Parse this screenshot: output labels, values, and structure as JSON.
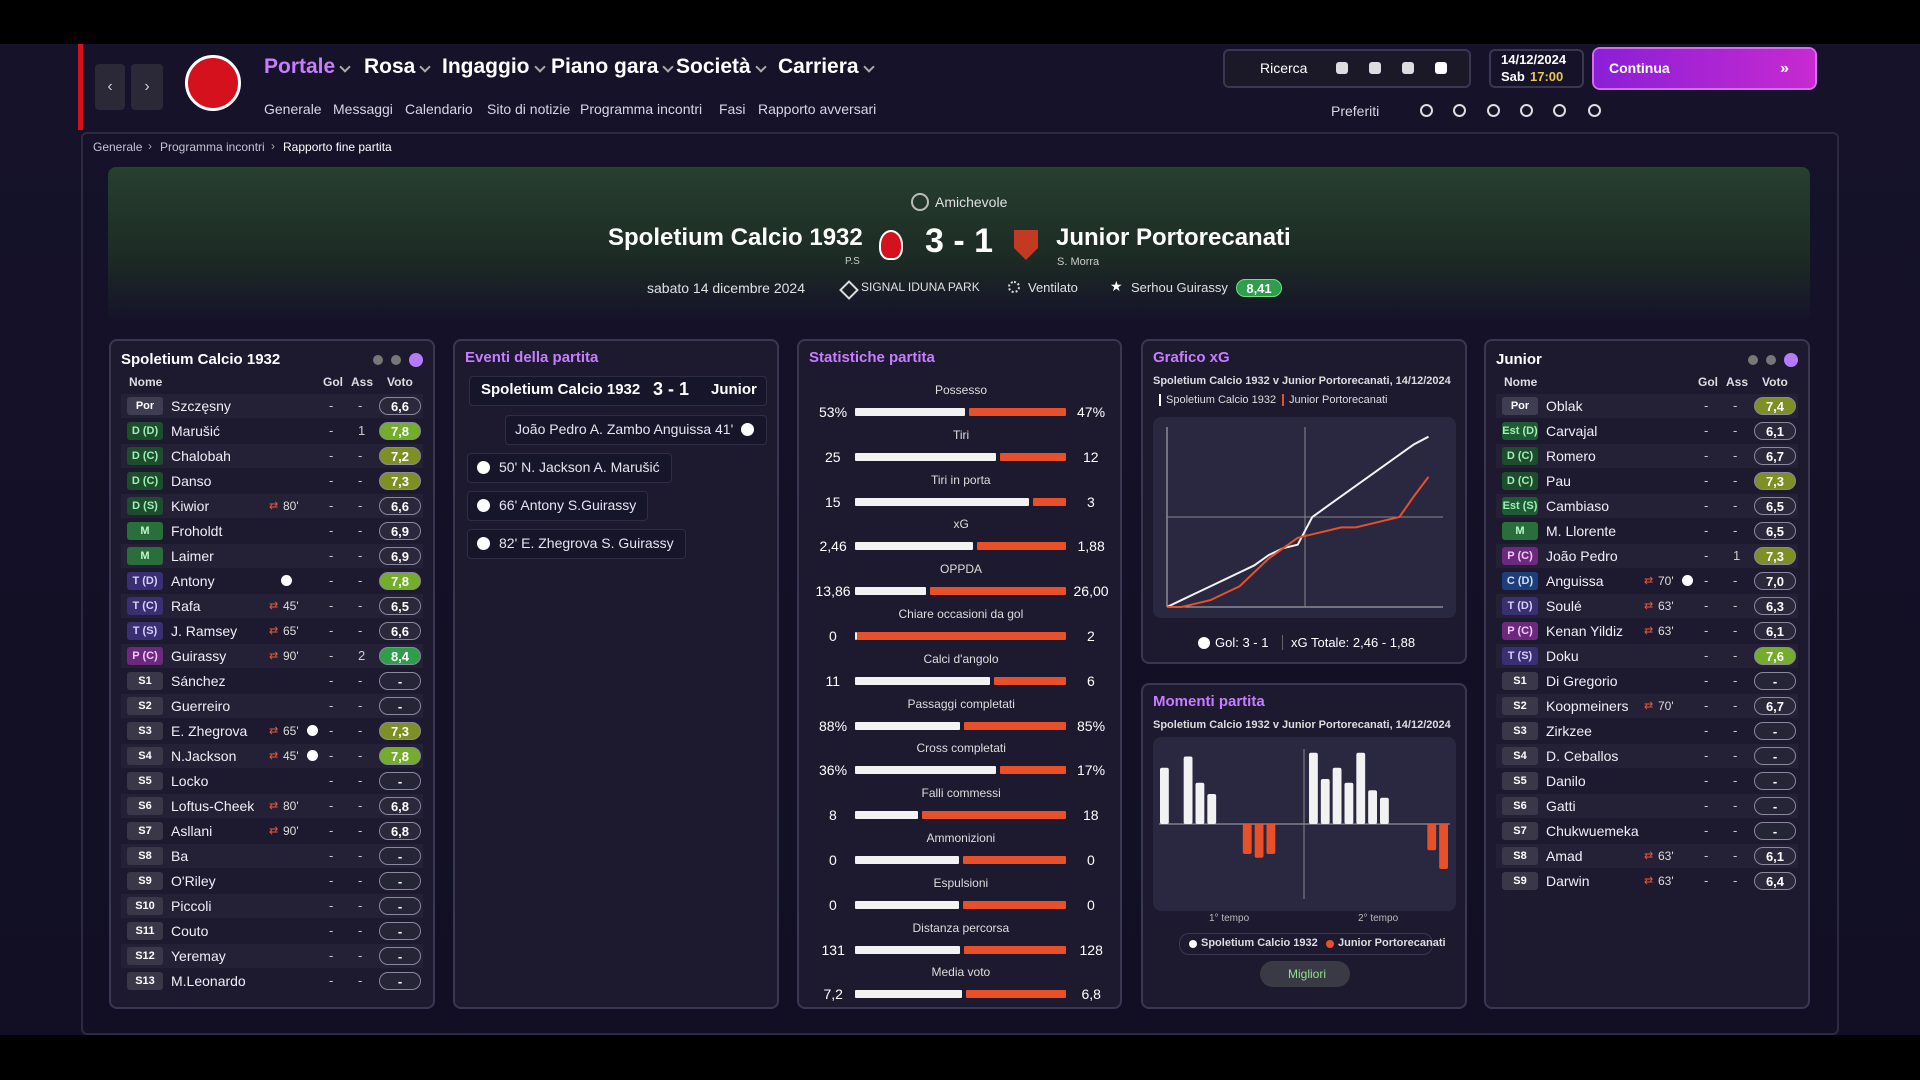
{
  "nav": {
    "menu": [
      "Portale",
      "Rosa",
      "Ingaggio",
      "Piano gara",
      "Società",
      "Carriera"
    ],
    "submenu": [
      "Generale",
      "Messaggi",
      "Calendario",
      "Sito di notizie",
      "Programma incontri",
      "Fasi",
      "Rapporto avversari"
    ],
    "search": "Ricerca",
    "date": "14/12/2024",
    "day": "Sab",
    "time": "17:00",
    "continue": "Continua",
    "favorites": "Preferiti"
  },
  "breadcrumb": [
    "Generale",
    "Programma incontri",
    "Rapporto fine partita"
  ],
  "match": {
    "competition": "Amichevole",
    "home": "Spoletium Calcio 1932",
    "home_note": "P.S",
    "score": "3 - 1",
    "away": "Junior Portorecanati",
    "away_note": "S. Morra",
    "date": "sabato 14 dicembre 2024",
    "stadium": "SIGNAL IDUNA PARK",
    "weather": "Ventilato",
    "motm": "Serhou Guirassy",
    "motm_rating": "8,41"
  },
  "columns": [
    "Nome",
    "Gol",
    "Ass",
    "Voto"
  ],
  "home_lineup": {
    "title": "Spoletium Calcio 1932",
    "players": [
      {
        "pos": "Por",
        "name": "Szczęsny",
        "gol": "-",
        "ass": "-",
        "voto": "6,6"
      },
      {
        "pos": "D (D)",
        "name": "Marušić",
        "gol": "-",
        "ass": "1",
        "voto": "7,8"
      },
      {
        "pos": "D (C)",
        "name": "Chalobah",
        "gol": "-",
        "ass": "-",
        "voto": "7,2"
      },
      {
        "pos": "D (C)",
        "name": "Danso",
        "gol": "-",
        "ass": "-",
        "voto": "7,3"
      },
      {
        "pos": "D (S)",
        "name": "Kiwior",
        "sub": "80'",
        "gol": "-",
        "ass": "-",
        "voto": "6,6"
      },
      {
        "pos": "M",
        "name": "Froholdt",
        "gol": "-",
        "ass": "-",
        "voto": "6,9"
      },
      {
        "pos": "M",
        "name": "Laimer",
        "gol": "-",
        "ass": "-",
        "voto": "6,9"
      },
      {
        "pos": "T (D)",
        "name": "Antony",
        "goal": true,
        "gol": "-",
        "ass": "-",
        "voto": "7,8"
      },
      {
        "pos": "T (C)",
        "name": "Rafa",
        "sub": "45'",
        "gol": "-",
        "ass": "-",
        "voto": "6,5"
      },
      {
        "pos": "T (S)",
        "name": "J. Ramsey",
        "sub": "65'",
        "gol": "-",
        "ass": "-",
        "voto": "6,6"
      },
      {
        "pos": "P (C)",
        "name": "Guirassy",
        "sub": "90'",
        "gol": "-",
        "ass": "2",
        "voto": "8,4"
      },
      {
        "pos": "S1",
        "name": "Sánchez",
        "gol": "-",
        "ass": "-",
        "voto": "-"
      },
      {
        "pos": "S2",
        "name": "Guerreiro",
        "gol": "-",
        "ass": "-",
        "voto": "-"
      },
      {
        "pos": "S3",
        "name": "E. Zhegrova",
        "sub": "65'",
        "goal": true,
        "gol": "-",
        "ass": "-",
        "voto": "7,3"
      },
      {
        "pos": "S4",
        "name": "N.Jackson",
        "sub": "45'",
        "goal": true,
        "gol": "-",
        "ass": "-",
        "voto": "7,8"
      },
      {
        "pos": "S5",
        "name": "Locko",
        "gol": "-",
        "ass": "-",
        "voto": "-"
      },
      {
        "pos": "S6",
        "name": "Loftus-Cheek",
        "sub": "80'",
        "gol": "-",
        "ass": "-",
        "voto": "6,8"
      },
      {
        "pos": "S7",
        "name": "Asllani",
        "sub": "90'",
        "gol": "-",
        "ass": "-",
        "voto": "6,8"
      },
      {
        "pos": "S8",
        "name": "Ba",
        "gol": "-",
        "ass": "-",
        "voto": "-"
      },
      {
        "pos": "S9",
        "name": "O'Riley",
        "gol": "-",
        "ass": "-",
        "voto": "-"
      },
      {
        "pos": "S10",
        "name": "Piccoli",
        "gol": "-",
        "ass": "-",
        "voto": "-"
      },
      {
        "pos": "S11",
        "name": "Couto",
        "gol": "-",
        "ass": "-",
        "voto": "-"
      },
      {
        "pos": "S12",
        "name": "Yeremay",
        "gol": "-",
        "ass": "-",
        "voto": "-"
      },
      {
        "pos": "S13",
        "name": "M.Leonardo",
        "gol": "-",
        "ass": "-",
        "voto": "-"
      }
    ]
  },
  "away_lineup": {
    "title": "Junior",
    "players": [
      {
        "pos": "Por",
        "name": "Oblak",
        "gol": "-",
        "ass": "-",
        "voto": "7,4"
      },
      {
        "pos": "Est (D)",
        "name": "Carvajal",
        "gol": "-",
        "ass": "-",
        "voto": "6,1"
      },
      {
        "pos": "D (C)",
        "name": "Romero",
        "gol": "-",
        "ass": "-",
        "voto": "6,7"
      },
      {
        "pos": "D (C)",
        "name": "Pau",
        "gol": "-",
        "ass": "-",
        "voto": "7,3"
      },
      {
        "pos": "Est (S)",
        "name": "Cambiaso",
        "gol": "-",
        "ass": "-",
        "voto": "6,5"
      },
      {
        "pos": "M",
        "name": "M. Llorente",
        "gol": "-",
        "ass": "-",
        "voto": "6,5"
      },
      {
        "pos": "P (C)",
        "name": "João Pedro",
        "gol": "-",
        "ass": "1",
        "voto": "7,3"
      },
      {
        "pos": "C (D)",
        "name": "Anguissa",
        "sub": "70'",
        "goal": true,
        "gol": "-",
        "ass": "-",
        "voto": "7,0"
      },
      {
        "pos": "T (D)",
        "name": "Soulé",
        "sub": "63'",
        "gol": "-",
        "ass": "-",
        "voto": "6,3"
      },
      {
        "pos": "P (C)",
        "name": "Kenan Yildiz",
        "sub": "63'",
        "gol": "-",
        "ass": "-",
        "voto": "6,1"
      },
      {
        "pos": "T (S)",
        "name": "Doku",
        "gol": "-",
        "ass": "-",
        "voto": "7,6"
      },
      {
        "pos": "S1",
        "name": "Di Gregorio",
        "gol": "-",
        "ass": "-",
        "voto": "-"
      },
      {
        "pos": "S2",
        "name": "Koopmeiners",
        "sub": "70'",
        "gol": "-",
        "ass": "-",
        "voto": "6,7"
      },
      {
        "pos": "S3",
        "name": "Zirkzee",
        "gol": "-",
        "ass": "-",
        "voto": "-"
      },
      {
        "pos": "S4",
        "name": "D. Ceballos",
        "gol": "-",
        "ass": "-",
        "voto": "-"
      },
      {
        "pos": "S5",
        "name": "Danilo",
        "gol": "-",
        "ass": "-",
        "voto": "-"
      },
      {
        "pos": "S6",
        "name": "Gatti",
        "gol": "-",
        "ass": "-",
        "voto": "-"
      },
      {
        "pos": "S7",
        "name": "Chukwuemeka",
        "gol": "-",
        "ass": "-",
        "voto": "-"
      },
      {
        "pos": "S8",
        "name": "Amad",
        "sub": "63'",
        "gol": "-",
        "ass": "-",
        "voto": "6,1"
      },
      {
        "pos": "S9",
        "name": "Darwin",
        "sub": "63'",
        "gol": "-",
        "ass": "-",
        "voto": "6,4"
      }
    ]
  },
  "events": {
    "title": "Eventi della partita",
    "home": "Spoletium Calcio 1932",
    "score": "3 - 1",
    "away": "Junior",
    "items": [
      {
        "side": "away",
        "text": "João Pedro A. Zambo Anguissa 41'"
      },
      {
        "side": "home",
        "text": "50' N. Jackson A. Marušić"
      },
      {
        "side": "home",
        "text": "66' Antony S.Guirassy"
      },
      {
        "side": "home",
        "text": "82' E. Zhegrova S. Guirassy"
      }
    ]
  },
  "stats": {
    "title": "Statistiche partita",
    "rows": [
      {
        "name": "Possesso",
        "home": "53%",
        "away": "47%"
      },
      {
        "name": "Tiri",
        "home": "25",
        "away": "12"
      },
      {
        "name": "Tiri in porta",
        "home": "15",
        "away": "3"
      },
      {
        "name": "xG",
        "home": "2,46",
        "away": "1,88"
      },
      {
        "name": "OPPDA",
        "home": "13,86",
        "away": "26,00"
      },
      {
        "name": "Chiare occasioni da gol",
        "home": "0",
        "away": "2"
      },
      {
        "name": "Calci d'angolo",
        "home": "11",
        "away": "6"
      },
      {
        "name": "Passaggi completati",
        "home": "88%",
        "away": "85%"
      },
      {
        "name": "Cross completati",
        "home": "36%",
        "away": "17%"
      },
      {
        "name": "Falli commessi",
        "home": "8",
        "away": "18"
      },
      {
        "name": "Ammonizioni",
        "home": "0",
        "away": "0"
      },
      {
        "name": "Espulsioni",
        "home": "0",
        "away": "0"
      },
      {
        "name": "Distanza percorsa",
        "home": "131",
        "away": "128"
      },
      {
        "name": "Media voto",
        "home": "7,2",
        "away": "6,8"
      }
    ]
  },
  "xg": {
    "title": "Grafico xG",
    "subtitle": "Spoletium Calcio 1932 v Junior Portorecanati, 14/12/2024",
    "legend": [
      "Spoletium Calcio 1932",
      "Junior Portorecanati"
    ],
    "goals": "Gol: 3 - 1",
    "total": "xG Totale: 2,46 - 1,88",
    "chart": {
      "type": "line",
      "xlim": [
        0,
        95
      ],
      "ylim": [
        0,
        2.6
      ],
      "x": [
        0,
        5,
        10,
        15,
        20,
        25,
        30,
        35,
        40,
        45,
        50,
        55,
        60,
        65,
        70,
        75,
        80,
        85,
        90
      ],
      "series": [
        {
          "color": "#f2f2f2",
          "values": [
            0,
            0.1,
            0.2,
            0.3,
            0.4,
            0.5,
            0.6,
            0.75,
            0.85,
            0.9,
            1.3,
            1.45,
            1.6,
            1.75,
            1.9,
            2.05,
            2.2,
            2.35,
            2.46
          ]
        },
        {
          "color": "#e8502a",
          "values": [
            0,
            0,
            0.05,
            0.1,
            0.2,
            0.3,
            0.5,
            0.7,
            0.85,
            1.0,
            1.05,
            1.1,
            1.15,
            1.15,
            1.2,
            1.25,
            1.3,
            1.6,
            1.88
          ]
        }
      ]
    }
  },
  "momentum": {
    "title": "Momenti partita",
    "subtitle": "Spoletium Calcio 1932 v Junior Portorecanati, 14/12/2024",
    "halves": [
      "1° tempo",
      "2° tempo"
    ],
    "legend": [
      "Spoletium Calcio 1932",
      "Junior Portorecanati"
    ],
    "button": "Migliori",
    "chart": {
      "type": "bar",
      "ylim": [
        -1,
        1
      ],
      "home_color": "#f2f2f2",
      "away_color": "#e8502a",
      "first": [
        0.75,
        null,
        0.9,
        0.55,
        0.4,
        null,
        null,
        -0.4,
        -0.45,
        -0.4,
        null,
        null
      ],
      "second": [
        0.95,
        0.6,
        0.75,
        0.55,
        0.95,
        0.45,
        0.35,
        null,
        null,
        null,
        -0.35,
        -0.6
      ]
    }
  }
}
